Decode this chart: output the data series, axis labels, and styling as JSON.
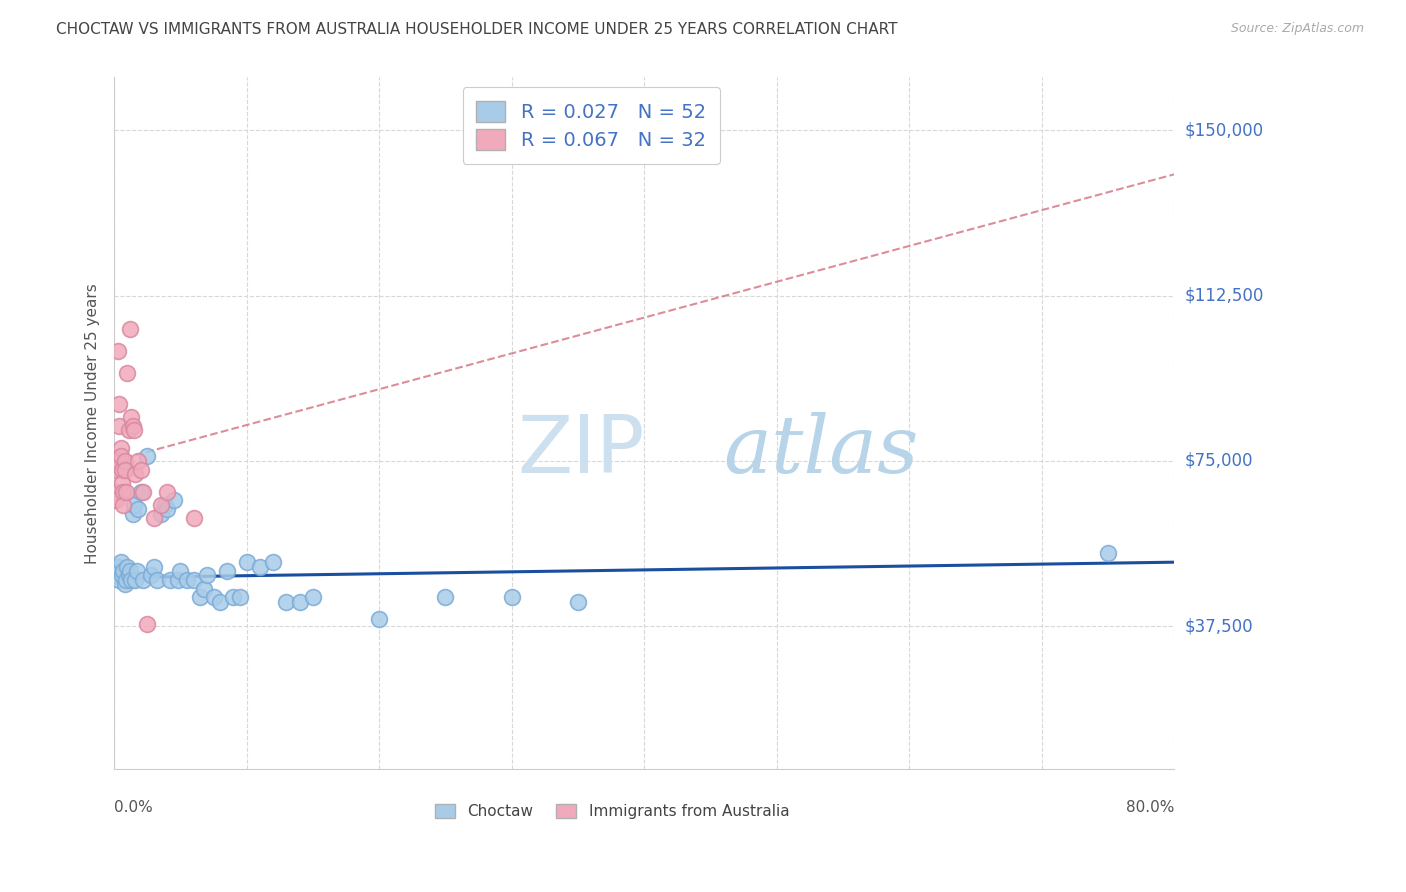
{
  "title": "CHOCTAW VS IMMIGRANTS FROM AUSTRALIA HOUSEHOLDER INCOME UNDER 25 YEARS CORRELATION CHART",
  "source": "Source: ZipAtlas.com",
  "ylabel": "Householder Income Under 25 years",
  "yticks": [
    0,
    37500,
    75000,
    112500,
    150000
  ],
  "ytick_labels": [
    "",
    "$37,500",
    "$75,000",
    "$112,500",
    "$150,000"
  ],
  "ylim": [
    5000,
    162000
  ],
  "xlim": [
    0.0,
    0.8
  ],
  "xtick_positions": [
    0.0,
    0.1,
    0.2,
    0.3,
    0.4,
    0.5,
    0.6,
    0.7,
    0.8
  ],
  "watermark_zip": "ZIP",
  "watermark_atlas": "atlas",
  "R_choctaw": "0.027",
  "N_choctaw": "52",
  "R_australia": "0.067",
  "N_australia": "32",
  "color_choctaw_fill": "#a8cce8",
  "color_choctaw_edge": "#7aaad8",
  "color_australia_fill": "#f0aabb",
  "color_australia_edge": "#d888a0",
  "color_line_choctaw": "#1a4fa0",
  "color_line_australia": "#d06878",
  "background_color": "#ffffff",
  "grid_color": "#d8d8d8",
  "title_color": "#444444",
  "ytick_color": "#4472c4",
  "watermark_color": "#cce0f0",
  "choctaw_x": [
    0.001,
    0.002,
    0.003,
    0.004,
    0.005,
    0.006,
    0.007,
    0.008,
    0.009,
    0.01,
    0.011,
    0.012,
    0.013,
    0.014,
    0.015,
    0.016,
    0.017,
    0.018,
    0.02,
    0.022,
    0.025,
    0.028,
    0.03,
    0.032,
    0.035,
    0.038,
    0.04,
    0.042,
    0.045,
    0.048,
    0.05,
    0.055,
    0.06,
    0.065,
    0.068,
    0.07,
    0.075,
    0.08,
    0.085,
    0.09,
    0.095,
    0.1,
    0.11,
    0.12,
    0.13,
    0.14,
    0.15,
    0.2,
    0.25,
    0.3,
    0.35,
    0.75
  ],
  "choctaw_y": [
    50000,
    49000,
    51000,
    48000,
    52000,
    49000,
    50000,
    47000,
    48000,
    51000,
    49000,
    50000,
    48000,
    63000,
    65000,
    48000,
    50000,
    64000,
    68000,
    48000,
    76000,
    49000,
    51000,
    48000,
    63000,
    65000,
    64000,
    48000,
    66000,
    48000,
    50000,
    48000,
    48000,
    44000,
    46000,
    49000,
    44000,
    43000,
    50000,
    44000,
    44000,
    52000,
    51000,
    52000,
    43000,
    43000,
    44000,
    39000,
    44000,
    44000,
    43000,
    54000
  ],
  "australia_x": [
    0.001,
    0.001,
    0.002,
    0.002,
    0.003,
    0.003,
    0.004,
    0.004,
    0.005,
    0.005,
    0.006,
    0.006,
    0.007,
    0.007,
    0.008,
    0.008,
    0.009,
    0.01,
    0.011,
    0.012,
    0.013,
    0.014,
    0.015,
    0.016,
    0.018,
    0.02,
    0.022,
    0.025,
    0.03,
    0.035,
    0.04,
    0.06
  ],
  "australia_y": [
    68000,
    66000,
    75000,
    73000,
    100000,
    75000,
    88000,
    83000,
    78000,
    76000,
    73000,
    70000,
    68000,
    65000,
    75000,
    73000,
    68000,
    95000,
    82000,
    105000,
    85000,
    83000,
    82000,
    72000,
    75000,
    73000,
    68000,
    38000,
    62000,
    65000,
    68000,
    62000
  ],
  "choctaw_trend_y0": 48500,
  "choctaw_trend_y1": 52000,
  "australia_trend_y0": 75000,
  "australia_trend_y1": 140000
}
